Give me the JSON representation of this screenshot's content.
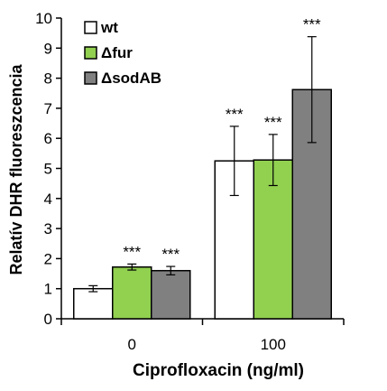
{
  "chart_data": {
    "type": "bar",
    "title": "",
    "xlabel": "Ciprofloxacin (ng/ml)",
    "ylabel": "Relatív DHR fluoreszcencia",
    "ylim": [
      0,
      10
    ],
    "yticks": [
      0,
      1,
      2,
      3,
      4,
      5,
      6,
      7,
      8,
      9,
      10
    ],
    "categories": [
      "0",
      "100"
    ],
    "legend_position": "top-left",
    "grid": false,
    "series": [
      {
        "name": "wt",
        "color": "#ffffff",
        "values": [
          1.0,
          5.25
        ],
        "errors": [
          0.1,
          1.15
        ],
        "significance": [
          "",
          "***"
        ]
      },
      {
        "name": "Δfur",
        "color": "#92d050",
        "values": [
          1.72,
          5.28
        ],
        "errors": [
          0.1,
          0.85
        ],
        "significance": [
          "***",
          "***"
        ]
      },
      {
        "name": "ΔsodAB",
        "color": "#808080",
        "values": [
          1.6,
          7.62
        ],
        "errors": [
          0.14,
          1.76
        ],
        "significance": [
          "***",
          "***"
        ]
      }
    ]
  }
}
